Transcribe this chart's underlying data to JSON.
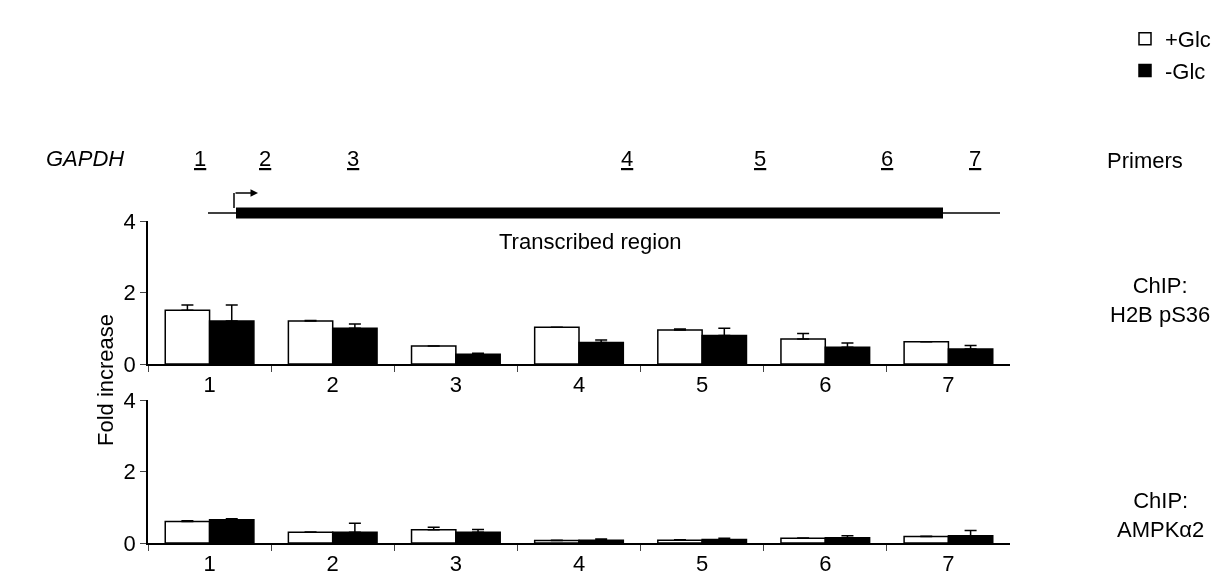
{
  "chart_data": [
    {
      "type": "bar",
      "categories": [
        "1",
        "2",
        "3",
        "4",
        "5",
        "6",
        "7"
      ],
      "ylabel": "Fold increase",
      "ylim": [
        0,
        4
      ],
      "yticks": [
        0,
        2,
        4
      ],
      "legend": "top right",
      "series": [
        {
          "name": "+Glc",
          "color": "#ffffff",
          "values": [
            1.5,
            1.2,
            0.5,
            1.03,
            0.95,
            0.7,
            0.62
          ],
          "errors": [
            [
              1.5,
              1.65
            ],
            [
              1.2,
              1.22
            ],
            [
              0.5,
              0.5
            ],
            [
              1.03,
              1.03
            ],
            [
              0.95,
              0.98
            ],
            [
              0.7,
              0.85
            ],
            [
              0.62,
              0.62
            ]
          ]
        },
        {
          "name": "-Glc",
          "color": "#000000",
          "values": [
            1.2,
            1.0,
            0.27,
            0.6,
            0.8,
            0.47,
            0.42
          ],
          "errors": [
            [
              1.2,
              1.65
            ],
            [
              1.0,
              1.12
            ],
            [
              0.27,
              0.3
            ],
            [
              0.6,
              0.67
            ],
            [
              0.8,
              1.0
            ],
            [
              0.47,
              0.59
            ],
            [
              0.42,
              0.52
            ]
          ]
        }
      ],
      "annotations": [
        "GAPDH",
        "1",
        "2",
        "3",
        "4",
        "5",
        "6",
        "7",
        "Primers",
        "Transcribed region",
        "ChIP:\nH2B pS36"
      ]
    },
    {
      "type": "bar",
      "categories": [
        "1",
        "2",
        "3",
        "4",
        "5",
        "6",
        "7"
      ],
      "ylim": [
        0,
        4
      ],
      "yticks": [
        0,
        2,
        4
      ],
      "series": [
        {
          "color": "#ffffff",
          "values": [
            0.6,
            0.3,
            0.37,
            0.07,
            0.08,
            0.13,
            0.18
          ],
          "errors": [
            [
              0.6,
              0.62
            ],
            [
              0.3,
              0.31
            ],
            [
              0.37,
              0.44
            ],
            [
              0.07,
              0.08
            ],
            [
              0.08,
              0.09
            ],
            [
              0.13,
              0.14
            ],
            [
              0.18,
              0.19
            ]
          ]
        },
        {
          "color": "#000000",
          "values": [
            0.65,
            0.3,
            0.3,
            0.08,
            0.1,
            0.15,
            0.2
          ],
          "errors": [
            [
              0.65,
              0.68
            ],
            [
              0.3,
              0.55
            ],
            [
              0.3,
              0.38
            ],
            [
              0.08,
              0.11
            ],
            [
              0.1,
              0.13
            ],
            [
              0.15,
              0.2
            ],
            [
              0.2,
              0.35
            ]
          ]
        }
      ],
      "annotations": [
        "ChIP:\nAMPKα2"
      ]
    }
  ]
}
